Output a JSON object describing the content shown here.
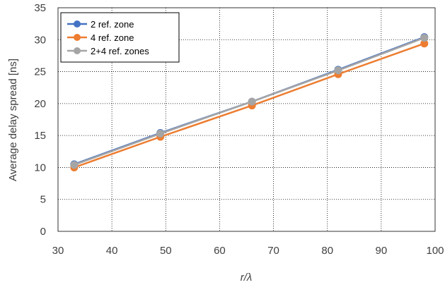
{
  "chart_data": {
    "type": "line",
    "title": "",
    "xlabel": "r/λ",
    "ylabel": "Average delay spread  [ns]",
    "xlim": [
      30,
      100
    ],
    "ylim": [
      0,
      35
    ],
    "xticks": [
      30,
      40,
      50,
      60,
      70,
      80,
      90,
      100
    ],
    "yticks": [
      0,
      5,
      10,
      15,
      20,
      25,
      30,
      35
    ],
    "grid": true,
    "legend_position": "top-left",
    "x": [
      33,
      49,
      66,
      82,
      98
    ],
    "series": [
      {
        "name": "2 ref. zone",
        "color": "#4472c4",
        "values": [
          10.5,
          15.4,
          20.3,
          25.3,
          30.4
        ]
      },
      {
        "name": "4 ref. zone",
        "color": "#ed7d31",
        "values": [
          10.0,
          14.8,
          19.7,
          24.6,
          29.4
        ]
      },
      {
        "name": "2+4 ref. zones",
        "color": "#a5a5a5",
        "values": [
          10.4,
          15.3,
          20.3,
          25.2,
          30.3
        ]
      }
    ]
  }
}
